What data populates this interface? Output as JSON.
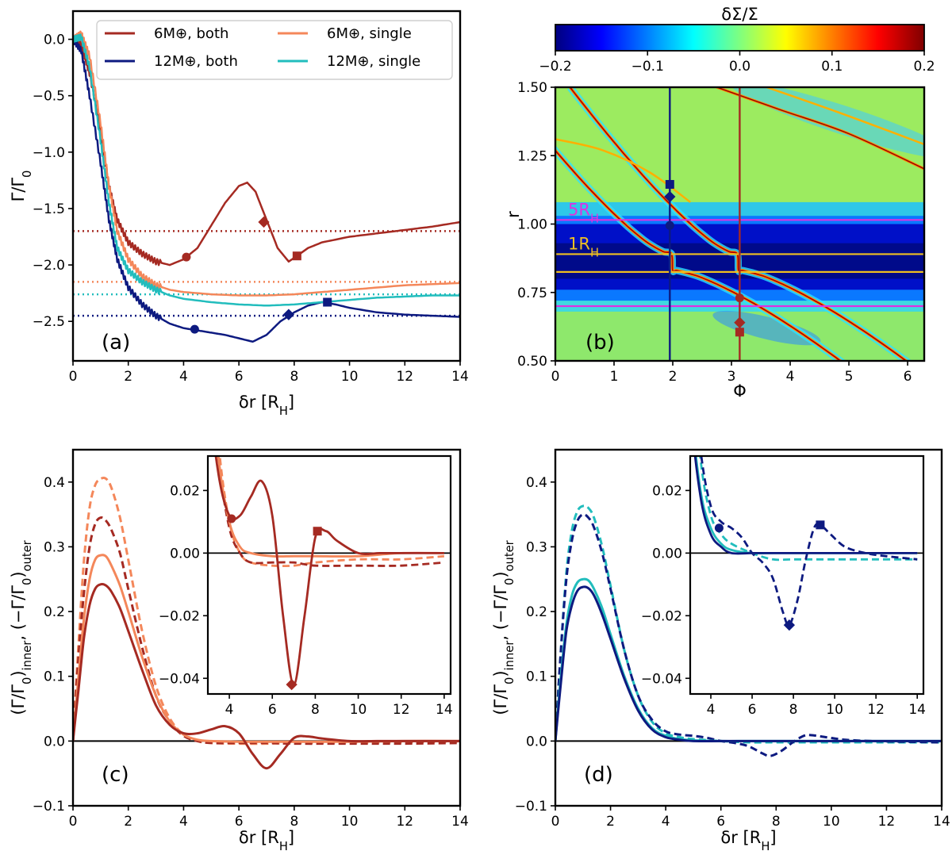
{
  "colors": {
    "six_both": "#a52a22",
    "twelve_both": "#0d1a80",
    "six_single": "#f4875a",
    "twelve_single": "#22bdbd",
    "magenta": "#e030e0",
    "gold": "#f0c020"
  },
  "chart_data": [
    {
      "panel": "a",
      "type": "line",
      "panel_label": "(a)",
      "xlabel": "δr [R_H]",
      "ylabel": "Γ/Γ_0",
      "xlim": [
        0,
        14
      ],
      "ylim": [
        -2.85,
        0.25
      ],
      "xticks": [
        "0",
        "2",
        "4",
        "6",
        "8",
        "10",
        "12",
        "14"
      ],
      "yticks": [
        "0.0",
        "−0.5",
        "−1.0",
        "−1.5",
        "−2.0",
        "−2.5"
      ],
      "legend": {
        "placement": "top",
        "entries": [
          "6M⊕, both",
          "12M⊕, both",
          "6M⊕, single",
          "12M⊕, single"
        ]
      },
      "series": [
        {
          "name": "6M⊕, both",
          "color": "six_both",
          "x": [
            0,
            0.3,
            0.6,
            1.0,
            1.3,
            1.6,
            2.0,
            2.5,
            3.0,
            3.5,
            4.0,
            4.5,
            5.0,
            5.5,
            6.0,
            6.3,
            6.6,
            7.0,
            7.4,
            7.8,
            8.1,
            8.5,
            9,
            10,
            11,
            12,
            13,
            14
          ],
          "y": [
            0.0,
            -0.05,
            -0.3,
            -0.8,
            -1.3,
            -1.6,
            -1.8,
            -1.9,
            -1.97,
            -2.0,
            -1.95,
            -1.85,
            -1.65,
            -1.45,
            -1.3,
            -1.27,
            -1.35,
            -1.6,
            -1.85,
            -1.97,
            -1.92,
            -1.85,
            -1.8,
            -1.75,
            -1.72,
            -1.69,
            -1.66,
            -1.62
          ],
          "asymptote": -1.7
        },
        {
          "name": "12M⊕, both",
          "color": "twelve_both",
          "x": [
            0,
            0.3,
            0.6,
            1.0,
            1.3,
            1.6,
            2.0,
            2.5,
            3.0,
            3.5,
            4.0,
            4.5,
            5.0,
            5.5,
            6.0,
            6.5,
            7.0,
            7.5,
            8.0,
            8.5,
            9.0,
            9.5,
            10,
            11,
            12,
            13,
            14
          ],
          "y": [
            0.0,
            -0.1,
            -0.5,
            -1.1,
            -1.6,
            -1.95,
            -2.2,
            -2.35,
            -2.45,
            -2.52,
            -2.56,
            -2.58,
            -2.6,
            -2.62,
            -2.65,
            -2.68,
            -2.62,
            -2.5,
            -2.42,
            -2.36,
            -2.33,
            -2.35,
            -2.38,
            -2.42,
            -2.44,
            -2.45,
            -2.46
          ],
          "asymptote": -2.45
        },
        {
          "name": "6M⊕, single",
          "color": "six_single",
          "x": [
            0,
            0.3,
            0.6,
            1.0,
            1.3,
            1.6,
            2.0,
            2.5,
            3.0,
            3.5,
            4.0,
            5.0,
            6.0,
            7.0,
            8.0,
            9.0,
            10,
            11,
            12,
            13,
            14
          ],
          "y": [
            0.0,
            0.05,
            -0.15,
            -0.75,
            -1.3,
            -1.7,
            -1.95,
            -2.1,
            -2.18,
            -2.22,
            -2.24,
            -2.26,
            -2.27,
            -2.27,
            -2.26,
            -2.24,
            -2.22,
            -2.2,
            -2.18,
            -2.17,
            -2.16
          ],
          "asymptote": -2.15
        },
        {
          "name": "12M⊕, single",
          "color": "twelve_single",
          "x": [
            0,
            0.3,
            0.6,
            1.0,
            1.3,
            1.6,
            2.0,
            2.5,
            3.0,
            3.5,
            4.0,
            5.0,
            6.0,
            7.0,
            8.0,
            9.0,
            10,
            11,
            12,
            13,
            14
          ],
          "y": [
            0.0,
            0.02,
            -0.25,
            -0.9,
            -1.45,
            -1.85,
            -2.05,
            -2.15,
            -2.22,
            -2.27,
            -2.3,
            -2.33,
            -2.35,
            -2.36,
            -2.35,
            -2.33,
            -2.31,
            -2.29,
            -2.28,
            -2.27,
            -2.27
          ],
          "asymptote": -2.26
        }
      ],
      "markers": [
        {
          "series": "6M⊕, both",
          "shape": "circle",
          "x": 4.1,
          "y": -1.93
        },
        {
          "series": "6M⊕, both",
          "shape": "diamond",
          "x": 6.9,
          "y": -1.62
        },
        {
          "series": "6M⊕, both",
          "shape": "square",
          "x": 8.1,
          "y": -1.92
        },
        {
          "series": "12M⊕, both",
          "shape": "circle",
          "x": 4.4,
          "y": -2.57
        },
        {
          "series": "12M⊕, both",
          "shape": "diamond",
          "x": 7.8,
          "y": -2.44
        },
        {
          "series": "12M⊕, both",
          "shape": "square",
          "x": 9.2,
          "y": -2.33
        }
      ]
    },
    {
      "panel": "b",
      "type": "heatmap",
      "panel_label": "(b)",
      "xlabel": "Φ",
      "ylabel": "r",
      "xlim": [
        0,
        6.283
      ],
      "ylim": [
        0.5,
        1.5
      ],
      "xticks": [
        "0",
        "1",
        "2",
        "3",
        "4",
        "5",
        "6"
      ],
      "yticks": [
        "0.50",
        "0.75",
        "1.00",
        "1.25",
        "1.50"
      ],
      "colorbar": {
        "label": "δΣ/Σ",
        "range": [
          -0.2,
          0.2
        ],
        "ticks": [
          "−0.2",
          "−0.1",
          "0.0",
          "0.1",
          "0.2"
        ],
        "colormap": [
          "#00007f",
          "#0000ff",
          "#007fff",
          "#00ffff",
          "#7fff7f",
          "#ffff00",
          "#ff7f00",
          "#ff0000",
          "#7f0000"
        ]
      },
      "annotations": [
        {
          "label": "5R_H",
          "color": "magenta",
          "r": 1.015
        },
        {
          "label": "1R_H",
          "color": "gold",
          "r": 0.89
        }
      ],
      "horizontal_lines": [
        {
          "color": "magenta",
          "r": 1.015
        },
        {
          "color": "gold",
          "r": 0.89
        },
        {
          "color": "gold",
          "r": 0.825
        },
        {
          "color": "magenta",
          "r": 0.7
        }
      ],
      "vertical_lines": [
        {
          "color": "twelve_both",
          "phi": 1.95
        },
        {
          "color": "six_both",
          "phi": 3.14
        }
      ],
      "markers": [
        {
          "color": "twelve_both",
          "shape": "square",
          "phi": 1.95,
          "r": 1.145
        },
        {
          "color": "twelve_both",
          "shape": "diamond",
          "phi": 1.95,
          "r": 1.1
        },
        {
          "color": "twelve_both",
          "shape": "circle",
          "phi": 1.95,
          "r": 0.995
        },
        {
          "color": "six_both",
          "shape": "circle",
          "phi": 3.14,
          "r": 0.73
        },
        {
          "color": "six_both",
          "shape": "diamond",
          "phi": 3.14,
          "r": 0.64
        },
        {
          "color": "six_both",
          "shape": "square",
          "phi": 3.14,
          "r": 0.605
        }
      ]
    },
    {
      "panel": "c",
      "type": "line",
      "panel_label": "(c)",
      "xlabel": "δr [R_H]",
      "ylabel": "(Γ/Γ_0)_inner, (−Γ/Γ_0)_outer",
      "xlim": [
        0,
        14
      ],
      "ylim": [
        -0.1,
        0.45
      ],
      "xticks": [
        "0",
        "2",
        "4",
        "6",
        "8",
        "10",
        "12",
        "14"
      ],
      "yticks": [
        "−0.1",
        "0.0",
        "0.1",
        "0.2",
        "0.3",
        "0.4"
      ],
      "series": [
        {
          "color": "six_single",
          "style": "dashed",
          "x": [
            0,
            0.2,
            0.4,
            0.6,
            0.8,
            1.0,
            1.2,
            1.4,
            1.7,
            2.0,
            2.5,
            3.0,
            3.5,
            4.0,
            4.5,
            5,
            6,
            7,
            8,
            10,
            12,
            14
          ],
          "y": [
            0,
            0.15,
            0.28,
            0.36,
            0.395,
            0.405,
            0.405,
            0.39,
            0.345,
            0.28,
            0.17,
            0.085,
            0.035,
            0.01,
            0.0,
            -0.003,
            -0.004,
            -0.004,
            -0.003,
            -0.002,
            -0.002,
            -0.001
          ]
        },
        {
          "color": "six_both",
          "style": "dashed",
          "x": [
            0,
            0.2,
            0.4,
            0.6,
            0.8,
            1.0,
            1.2,
            1.4,
            1.7,
            2.0,
            2.5,
            3.0,
            3.5,
            4.0,
            4.5,
            5,
            6,
            7,
            8,
            10,
            12,
            14
          ],
          "y": [
            0,
            0.13,
            0.23,
            0.3,
            0.335,
            0.345,
            0.34,
            0.325,
            0.29,
            0.235,
            0.145,
            0.07,
            0.03,
            0.008,
            0.0,
            -0.003,
            -0.003,
            -0.003,
            -0.004,
            -0.004,
            -0.004,
            -0.003
          ]
        },
        {
          "color": "six_single",
          "style": "solid",
          "x": [
            0,
            0.2,
            0.4,
            0.6,
            0.8,
            1.0,
            1.2,
            1.4,
            1.7,
            2.0,
            2.5,
            3.0,
            3.5,
            4.0,
            4.5,
            5,
            6,
            7,
            8,
            10,
            12,
            14
          ],
          "y": [
            0,
            0.1,
            0.19,
            0.25,
            0.28,
            0.287,
            0.285,
            0.27,
            0.24,
            0.2,
            0.13,
            0.07,
            0.03,
            0.01,
            0.002,
            0.0,
            -0.001,
            -0.001,
            -0.001,
            -0.001,
            0,
            0
          ]
        },
        {
          "color": "six_both",
          "style": "solid",
          "x": [
            0,
            0.2,
            0.4,
            0.6,
            0.8,
            1.0,
            1.2,
            1.4,
            1.7,
            2.0,
            2.5,
            3.0,
            3.5,
            4.0,
            4.5,
            5.0,
            5.5,
            6.0,
            6.5,
            7.0,
            7.5,
            8.0,
            8.5,
            9,
            10,
            11,
            12,
            14
          ],
          "y": [
            0,
            0.08,
            0.16,
            0.21,
            0.235,
            0.242,
            0.24,
            0.23,
            0.205,
            0.17,
            0.11,
            0.055,
            0.025,
            0.012,
            0.012,
            0.018,
            0.023,
            0.012,
            -0.02,
            -0.042,
            -0.02,
            0.005,
            0.007,
            0.004,
            0.0,
            0.0,
            0.0,
            0.0
          ]
        }
      ],
      "inset": {
        "xlim": [
          3,
          14.3
        ],
        "ylim": [
          -0.045,
          0.031
        ],
        "xticks": [
          "4",
          "6",
          "8",
          "10",
          "12",
          "14"
        ],
        "yticks": [
          "0.02",
          "0.00",
          "−0.02",
          "−0.04"
        ],
        "markers": [
          {
            "color": "six_both",
            "shape": "circle",
            "x": 4.1,
            "y": 0.011
          },
          {
            "color": "six_both",
            "shape": "diamond",
            "x": 6.9,
            "y": -0.042
          },
          {
            "color": "six_both",
            "shape": "square",
            "x": 8.1,
            "y": 0.007
          }
        ]
      }
    },
    {
      "panel": "d",
      "type": "line",
      "panel_label": "(d)",
      "xlabel": "δr [R_H]",
      "ylabel": "(Γ/Γ_0)_inner, (−Γ/Γ_0)_outer",
      "xlim": [
        0,
        14
      ],
      "ylim": [
        -0.1,
        0.45
      ],
      "xticks": [
        "0",
        "2",
        "4",
        "6",
        "8",
        "10",
        "12",
        "14"
      ],
      "yticks": [
        "−0.1",
        "0.0",
        "0.1",
        "0.2",
        "0.3",
        "0.4"
      ],
      "series": [
        {
          "color": "twelve_single",
          "style": "dashed",
          "x": [
            0,
            0.2,
            0.4,
            0.6,
            0.8,
            1.0,
            1.2,
            1.4,
            1.7,
            2.0,
            2.5,
            3.0,
            3.5,
            4.0,
            4.5,
            5,
            6,
            7,
            8,
            10,
            12,
            14
          ],
          "y": [
            0,
            0.14,
            0.26,
            0.325,
            0.355,
            0.363,
            0.36,
            0.345,
            0.3,
            0.24,
            0.14,
            0.07,
            0.03,
            0.012,
            0.006,
            0.003,
            0.0,
            -0.002,
            -0.002,
            -0.002,
            -0.002,
            -0.002
          ]
        },
        {
          "color": "twelve_both",
          "style": "dashed",
          "x": [
            0,
            0.2,
            0.4,
            0.6,
            0.8,
            1.0,
            1.2,
            1.4,
            1.7,
            2.0,
            2.5,
            3.0,
            3.5,
            4.0,
            4.5,
            5.0,
            5.5,
            6.0,
            6.5,
            7.0,
            7.5,
            7.8,
            8.2,
            8.6,
            9.0,
            9.3,
            9.8,
            10.5,
            11.5,
            12.5,
            14
          ],
          "y": [
            0,
            0.14,
            0.25,
            0.31,
            0.34,
            0.35,
            0.345,
            0.33,
            0.29,
            0.235,
            0.14,
            0.07,
            0.033,
            0.015,
            0.01,
            0.008,
            0.005,
            0.0,
            -0.003,
            -0.008,
            -0.019,
            -0.023,
            -0.015,
            -0.002,
            0.008,
            0.009,
            0.006,
            0.002,
            0.0,
            -0.001,
            -0.002
          ]
        },
        {
          "color": "twelve_single",
          "style": "solid",
          "x": [
            0,
            0.2,
            0.4,
            0.6,
            0.8,
            1.0,
            1.2,
            1.4,
            1.7,
            2.0,
            2.5,
            3.0,
            3.5,
            4.0,
            4.5,
            5,
            6,
            7,
            8,
            10,
            12,
            14
          ],
          "y": [
            0,
            0.1,
            0.18,
            0.225,
            0.245,
            0.25,
            0.248,
            0.235,
            0.205,
            0.165,
            0.1,
            0.05,
            0.02,
            0.008,
            0.003,
            0.001,
            0.0,
            0.0,
            0.0,
            0.0,
            0.0,
            0.0
          ]
        },
        {
          "color": "twelve_both",
          "style": "solid",
          "x": [
            0,
            0.2,
            0.4,
            0.6,
            0.8,
            1.0,
            1.2,
            1.4,
            1.7,
            2.0,
            2.5,
            3.0,
            3.5,
            4.0,
            4.5,
            5,
            6,
            7,
            8,
            10,
            12,
            14
          ],
          "y": [
            0,
            0.09,
            0.17,
            0.21,
            0.232,
            0.238,
            0.236,
            0.225,
            0.195,
            0.158,
            0.096,
            0.047,
            0.018,
            0.006,
            0.002,
            0.0,
            0.0,
            0.0,
            0.0,
            0.0,
            0.0,
            0.0
          ]
        }
      ],
      "inset": {
        "xlim": [
          3,
          14.3
        ],
        "ylim": [
          -0.045,
          0.031
        ],
        "xticks": [
          "4",
          "6",
          "8",
          "10",
          "12",
          "14"
        ],
        "yticks": [
          "0.02",
          "0.00",
          "−0.02",
          "−0.04"
        ],
        "markers": [
          {
            "color": "twelve_both",
            "shape": "circle",
            "x": 4.4,
            "y": 0.008
          },
          {
            "color": "twelve_both",
            "shape": "diamond",
            "x": 7.8,
            "y": -0.023
          },
          {
            "color": "twelve_both",
            "shape": "square",
            "x": 9.3,
            "y": 0.009
          }
        ]
      }
    }
  ]
}
